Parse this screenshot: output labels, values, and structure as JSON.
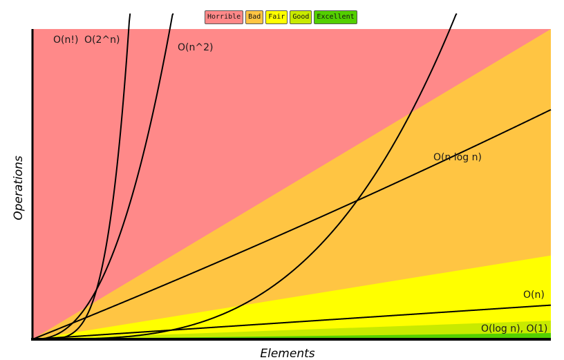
{
  "legend": [
    {
      "label": "Horrible",
      "color": "#ff8989"
    },
    {
      "label": "Bad",
      "color": "#ffc543"
    },
    {
      "label": "Fair",
      "color": "#ffff00"
    },
    {
      "label": "Good",
      "color": "#c8ea00"
    },
    {
      "label": "Excellent",
      "color": "#53d000"
    }
  ],
  "chart_data": {
    "type": "line",
    "title": "",
    "xlabel": "Elements",
    "ylabel": "Operations",
    "xlim": [
      0,
      100
    ],
    "ylim": [
      0,
      1000
    ],
    "grid": false,
    "legend_position": "top-center",
    "regions": [
      {
        "name": "Horrible",
        "color": "#ff8989",
        "slope": null
      },
      {
        "name": "Bad",
        "color": "#ffc543",
        "slope": 10
      },
      {
        "name": "Fair",
        "color": "#ffff00",
        "slope": 2.7
      },
      {
        "name": "Good",
        "color": "#c8ea00",
        "slope": 0.6
      },
      {
        "name": "Excellent",
        "color": "#53d000",
        "slope": 0.2
      }
    ],
    "series": [
      {
        "name": "O(n!)",
        "function": "factorial"
      },
      {
        "name": "O(2^n)",
        "function": "exponential"
      },
      {
        "name": "O(n^2)",
        "function": "quadratic"
      },
      {
        "name": "O(n log n)",
        "function": "nlogn"
      },
      {
        "name": "O(n)",
        "function": "linear"
      },
      {
        "name": "O(log n), O(1)",
        "function": "constant"
      }
    ]
  }
}
